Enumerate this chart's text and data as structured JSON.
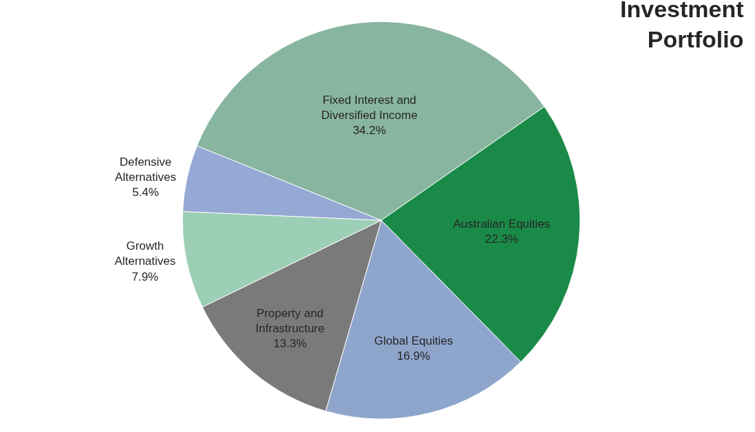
{
  "chart_data": {
    "type": "pie",
    "title": "Investment Portfolio",
    "categories": [
      "Fixed Interest and Diversified Income",
      "Australian Equities",
      "Global Equities",
      "Property and Infrastructure",
      "Growth Alternatives",
      "Defensive Alternatives"
    ],
    "values": [
      34.2,
      22.3,
      16.9,
      13.3,
      7.9,
      5.4
    ],
    "value_labels": [
      "34.2%",
      "22.3%",
      "16.9%",
      "13.3%",
      "7.9%",
      "5.4%"
    ],
    "colors": [
      "#88b5a0",
      "#1a8a48",
      "#8fa6cc",
      "#7a7a7a",
      "#9ccfb5",
      "#96a8d4"
    ],
    "legend": false
  }
}
